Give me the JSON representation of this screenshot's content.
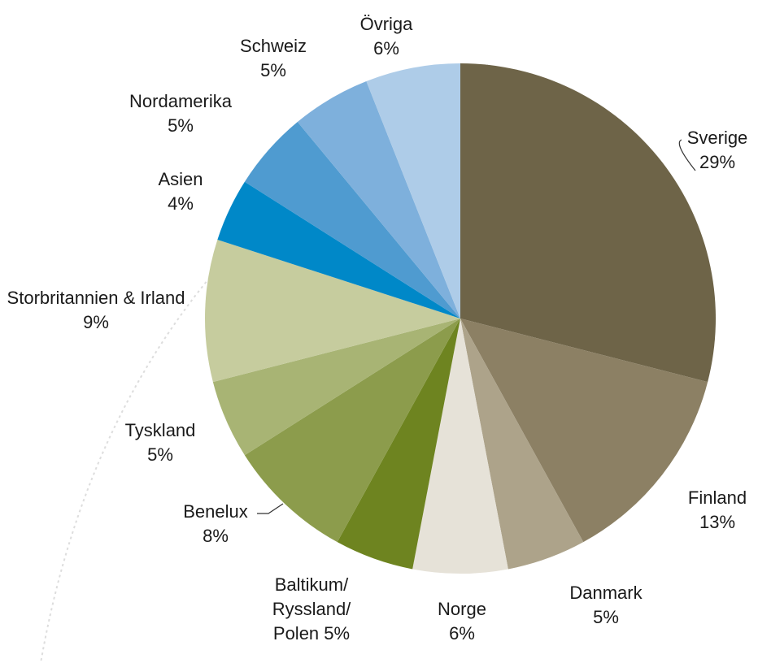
{
  "chart_data": {
    "type": "pie",
    "categories": [
      "Sverige",
      "Finland",
      "Danmark",
      "Norge",
      "Baltikum/ Ryssland/ Polen",
      "Benelux",
      "Tyskland",
      "Storbritannien & Irland",
      "Asien",
      "Nordamerika",
      "Schweiz",
      "Övriga"
    ],
    "values": [
      29,
      13,
      5,
      6,
      5,
      8,
      5,
      9,
      4,
      5,
      5,
      6
    ],
    "value_labels": [
      "29%",
      "13%",
      "5%",
      "6%",
      "5%",
      "8%",
      "5%",
      "9%",
      "4%",
      "5%",
      "5%",
      "6%"
    ],
    "colors": [
      "#6e6448",
      "#8c8064",
      "#ada38a",
      "#e6e2d8",
      "#6e8420",
      "#8c9c4c",
      "#a8b474",
      "#c6cc9e",
      "#0088c8",
      "#4f9bd0",
      "#7eb0dc",
      "#aecce8"
    ]
  }
}
